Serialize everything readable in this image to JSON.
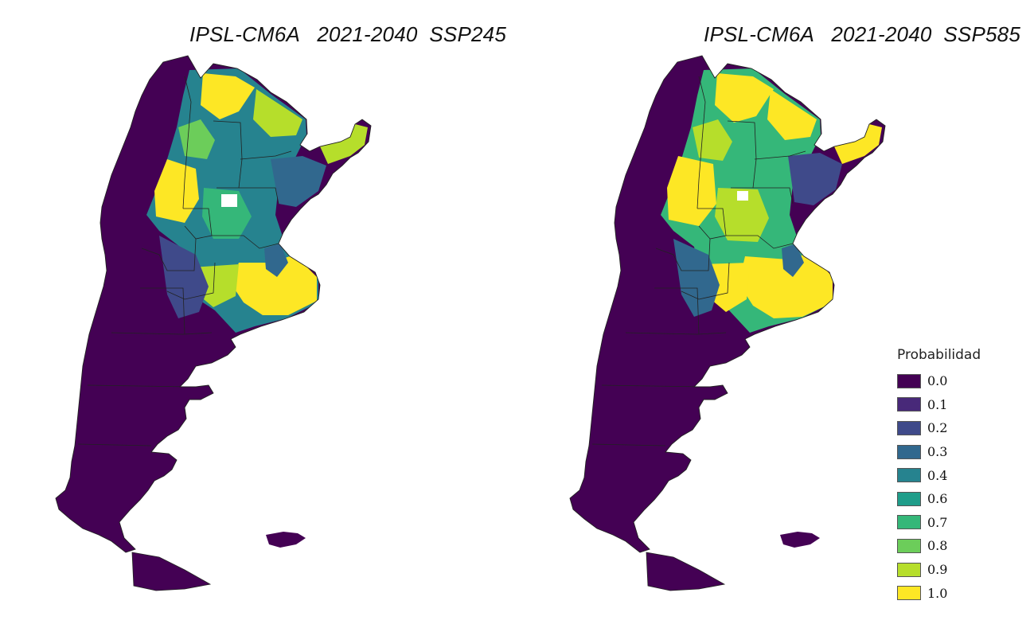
{
  "panels": [
    {
      "title": "IPSL-CM6A   2021-2040  SSP245",
      "scenario": "SSP245"
    },
    {
      "title": "IPSL-CM6A   2021-2040  SSP585",
      "scenario": "SSP585"
    }
  ],
  "legend": {
    "title": "Probabilidad",
    "items": [
      {
        "label": "0.0",
        "color": "#440154"
      },
      {
        "label": "0.1",
        "color": "#482979"
      },
      {
        "label": "0.2",
        "color": "#3f4a8a"
      },
      {
        "label": "0.3",
        "color": "#31688e"
      },
      {
        "label": "0.4",
        "color": "#26838f"
      },
      {
        "label": "0.6",
        "color": "#1f9d8a"
      },
      {
        "label": "0.7",
        "color": "#35b779"
      },
      {
        "label": "0.8",
        "color": "#6ccd5a"
      },
      {
        "label": "0.9",
        "color": "#b6de2b"
      },
      {
        "label": "1.0",
        "color": "#fde725"
      }
    ]
  }
}
